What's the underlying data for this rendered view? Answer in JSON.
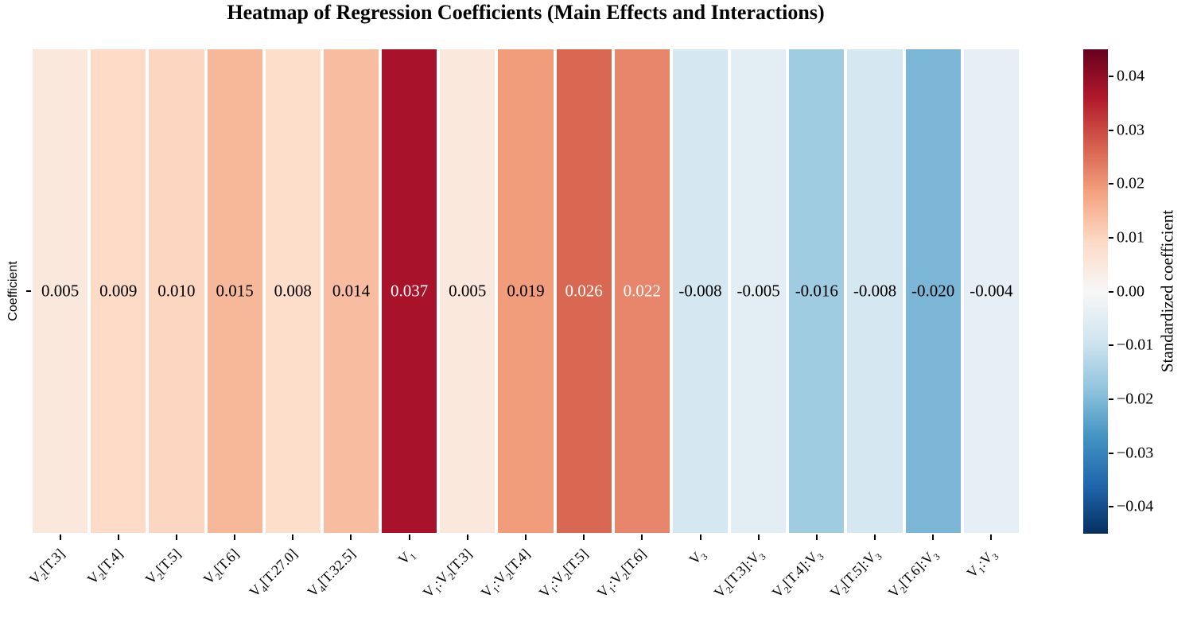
{
  "title": "Heatmap of Regression Coefficients (Main Effects and Interactions)",
  "y_axis_label": "Coefficient",
  "colorbar": {
    "label": "Standardized coefficient",
    "vmin": -0.045,
    "vmax": 0.045,
    "ticks": [
      {
        "value": 0.04,
        "label": "0.04"
      },
      {
        "value": 0.03,
        "label": "0.03"
      },
      {
        "value": 0.02,
        "label": "0.02"
      },
      {
        "value": 0.01,
        "label": "0.01"
      },
      {
        "value": 0.0,
        "label": "0.00"
      },
      {
        "value": -0.01,
        "label": "−0.01"
      },
      {
        "value": -0.02,
        "label": "−0.02"
      },
      {
        "value": -0.03,
        "label": "−0.03"
      },
      {
        "value": -0.04,
        "label": "−0.04"
      }
    ],
    "gradient_stops": [
      "#053061",
      "#2166ac",
      "#4393c3",
      "#92c5de",
      "#d1e5f0",
      "#f7f7f7",
      "#fddbc7",
      "#f4a582",
      "#d6604d",
      "#b2182b",
      "#67001f"
    ]
  },
  "chart_data": {
    "type": "heatmap",
    "title": "Heatmap of Regression Coefficients (Main Effects and Interactions)",
    "row_label": "Coefficient",
    "colormap": "RdBu_r",
    "vlim": [
      -0.045,
      0.045
    ],
    "categories": [
      "V_2[T.3]",
      "V_2[T.4]",
      "V_2[T.5]",
      "V_2[T.6]",
      "V_4[T.27.0]",
      "V_4[T.32.5]",
      "V_1",
      "V_1:V_2[T.3]",
      "V_1:V_2[T.4]",
      "V_1:V_2[T.5]",
      "V_1:V_2[T.6]",
      "V_3",
      "V_2[T.3]:V_3",
      "V_2[T.4]:V_3",
      "V_2[T.5]:V_3",
      "V_2[T.6]:V_3",
      "V_1:V_3"
    ],
    "values": [
      0.005,
      0.009,
      0.01,
      0.015,
      0.008,
      0.014,
      0.037,
      0.005,
      0.019,
      0.026,
      0.022,
      -0.008,
      -0.005,
      -0.016,
      -0.008,
      -0.02,
      -0.004
    ],
    "cells": [
      {
        "label": "V_2[T.3]",
        "value": 0.005,
        "display": "0.005",
        "color": "#fae8dd",
        "value_color": "#000000"
      },
      {
        "label": "V_2[T.4]",
        "value": 0.009,
        "display": "0.009",
        "color": "#fddbc7",
        "value_color": "#000000"
      },
      {
        "label": "V_2[T.5]",
        "value": 0.01,
        "display": "0.010",
        "color": "#fcd6c0",
        "value_color": "#000000"
      },
      {
        "label": "V_2[T.6]",
        "value": 0.015,
        "display": "0.015",
        "color": "#f7b799",
        "value_color": "#000000"
      },
      {
        "label": "V_4[T.27.0]",
        "value": 0.008,
        "display": "0.008",
        "color": "#fcdecb",
        "value_color": "#000000"
      },
      {
        "label": "V_4[T.32.5]",
        "value": 0.014,
        "display": "0.014",
        "color": "#f8bda1",
        "value_color": "#000000"
      },
      {
        "label": "V_1",
        "value": 0.037,
        "display": "0.037",
        "color": "#a91329",
        "value_color": "#ffffff"
      },
      {
        "label": "V_1:V_2[T.3]",
        "value": 0.005,
        "display": "0.005",
        "color": "#fae8dd",
        "value_color": "#000000"
      },
      {
        "label": "V_1:V_2[T.4]",
        "value": 0.019,
        "display": "0.019",
        "color": "#f19d7c",
        "value_color": "#000000"
      },
      {
        "label": "V_1:V_2[T.5]",
        "value": 0.026,
        "display": "0.026",
        "color": "#d96853",
        "value_color": "#ffffff"
      },
      {
        "label": "V_1:V_2[T.6]",
        "value": 0.022,
        "display": "0.022",
        "color": "#e7866a",
        "value_color": "#ffffff"
      },
      {
        "label": "V_3",
        "value": -0.008,
        "display": "-0.008",
        "color": "#d5e7f1",
        "value_color": "#000000"
      },
      {
        "label": "V_2[T.3]:V_3",
        "value": -0.005,
        "display": "-0.005",
        "color": "#e2edf4",
        "value_color": "#000000"
      },
      {
        "label": "V_2[T.4]:V_3",
        "value": -0.016,
        "display": "-0.016",
        "color": "#a0cce2",
        "value_color": "#000000"
      },
      {
        "label": "V_2[T.5]:V_3",
        "value": -0.008,
        "display": "-0.008",
        "color": "#d5e7f1",
        "value_color": "#000000"
      },
      {
        "label": "V_2[T.6]:V_3",
        "value": -0.02,
        "display": "-0.020",
        "color": "#7cb6d7",
        "value_color": "#000000"
      },
      {
        "label": "V_1:V_3",
        "value": -0.004,
        "display": "-0.004",
        "color": "#e6eff5",
        "value_color": "#000000"
      }
    ]
  }
}
